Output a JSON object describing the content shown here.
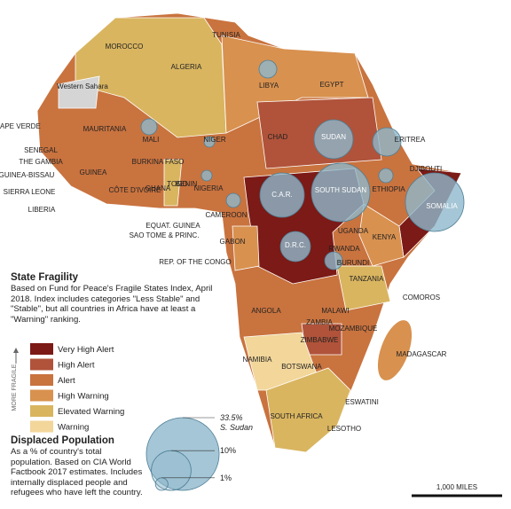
{
  "map": {
    "labels": [
      "MOROCCO",
      "TUNISIA",
      "ALGERIA",
      "Western Sahara",
      "LIBYA",
      "EGYPT",
      "CAPE VERDE",
      "MAURITANIA",
      "MALI",
      "NIGER",
      "CHAD",
      "SUDAN",
      "ERITREA",
      "SENEGAL",
      "THE GAMBIA",
      "GUINEA-BISSAU",
      "GUINEA",
      "SIERRA LEONE",
      "LIBERIA",
      "BURKINA FASO",
      "CÔTE D'IVOIRE",
      "GHANA",
      "TOGO",
      "BENIN",
      "NIGERIA",
      "C.A.R.",
      "SOUTH SUDAN",
      "ETHIOPIA",
      "DJIBOUTI",
      "SOMALIA",
      "CAMEROON",
      "EQUAT. GUINEA",
      "SAO TOME & PRINC.",
      "GABON",
      "D.R.C.",
      "UGANDA",
      "KENYA",
      "RWANDA",
      "BURUNDI",
      "REP. OF THE CONGO",
      "TANZANIA",
      "COMOROS",
      "ANGOLA",
      "MALAWI",
      "ZAMBIA",
      "MOZAMBIQUE",
      "ZIMBABWE",
      "MADAGASCAR",
      "NAMIBIA",
      "BOTSWANA",
      "ESWATINI",
      "SOUTH AFRICA",
      "LESOTHO"
    ],
    "scale_bar": "1,000 MILES"
  },
  "fragility_legend": {
    "title": "State Fragility",
    "description": "Based on Fund for Peace's Fragile States Index, April 2018. Index includes categories \"Less Stable\" and \"Stable\", but all countries in Africa have at least a \"Warning\" ranking.",
    "axis_label": "MORE FRAGILE",
    "categories": [
      {
        "name": "Very High Alert",
        "color": "#7b1a16"
      },
      {
        "name": "High Alert",
        "color": "#b0533a"
      },
      {
        "name": "Alert",
        "color": "#c9733f"
      },
      {
        "name": "High Warning",
        "color": "#d8914f"
      },
      {
        "name": "Elevated Warning",
        "color": "#d9b560"
      },
      {
        "name": "Warning",
        "color": "#f2d69a"
      }
    ]
  },
  "displaced_legend": {
    "title": "Displaced Population",
    "description": "As a % of country's total population. Based on CIA World Factbook 2017 estimates. Includes internally displaced people and refugees who have left the country.",
    "sizes": [
      {
        "value": 33.5,
        "label": "33.5%"
      },
      {
        "value": 10,
        "label": "10%"
      },
      {
        "value": 1,
        "label": "1%"
      }
    ],
    "max_note": "S. Sudan"
  }
}
